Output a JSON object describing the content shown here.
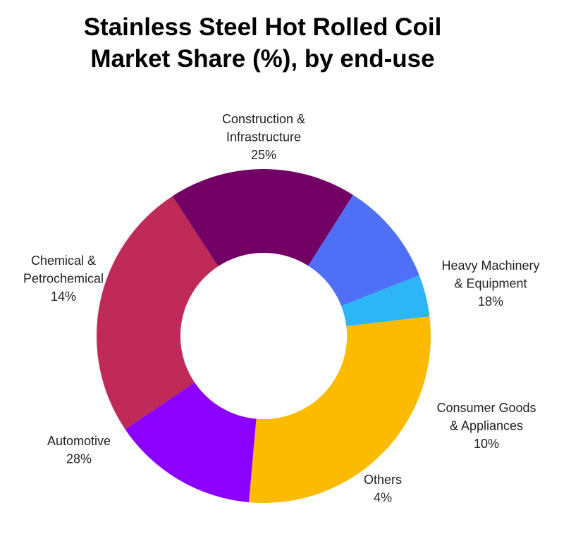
{
  "chart_data": {
    "type": "pie",
    "donut": true,
    "title_lines": [
      "Stainless Steel Hot Rolled Coil",
      "Market Share (%), by end-use"
    ],
    "slices": [
      {
        "label_lines": [
          "Construction &",
          "Infrastructure"
        ],
        "value": 25,
        "value_label": "25%",
        "color": "#bf2a58"
      },
      {
        "label_lines": [
          "Heavy Machinery",
          "& Equipment"
        ],
        "value": 18,
        "value_label": "18%",
        "color": "#730064"
      },
      {
        "label_lines": [
          "Consumer Goods",
          "& Appliances"
        ],
        "value": 10,
        "value_label": "10%",
        "color": "#4f6ff6"
      },
      {
        "label_lines": [
          "Others"
        ],
        "value": 4,
        "value_label": "4%",
        "color": "#2db5f7"
      },
      {
        "label_lines": [
          "Automotive"
        ],
        "value": 28,
        "value_label": "28%",
        "color": "#fdbb00"
      },
      {
        "label_lines": [
          "Chemical &",
          "Petrochemical"
        ],
        "value": 14,
        "value_label": "14%",
        "color": "#8b00ff"
      }
    ],
    "legend": "none"
  }
}
